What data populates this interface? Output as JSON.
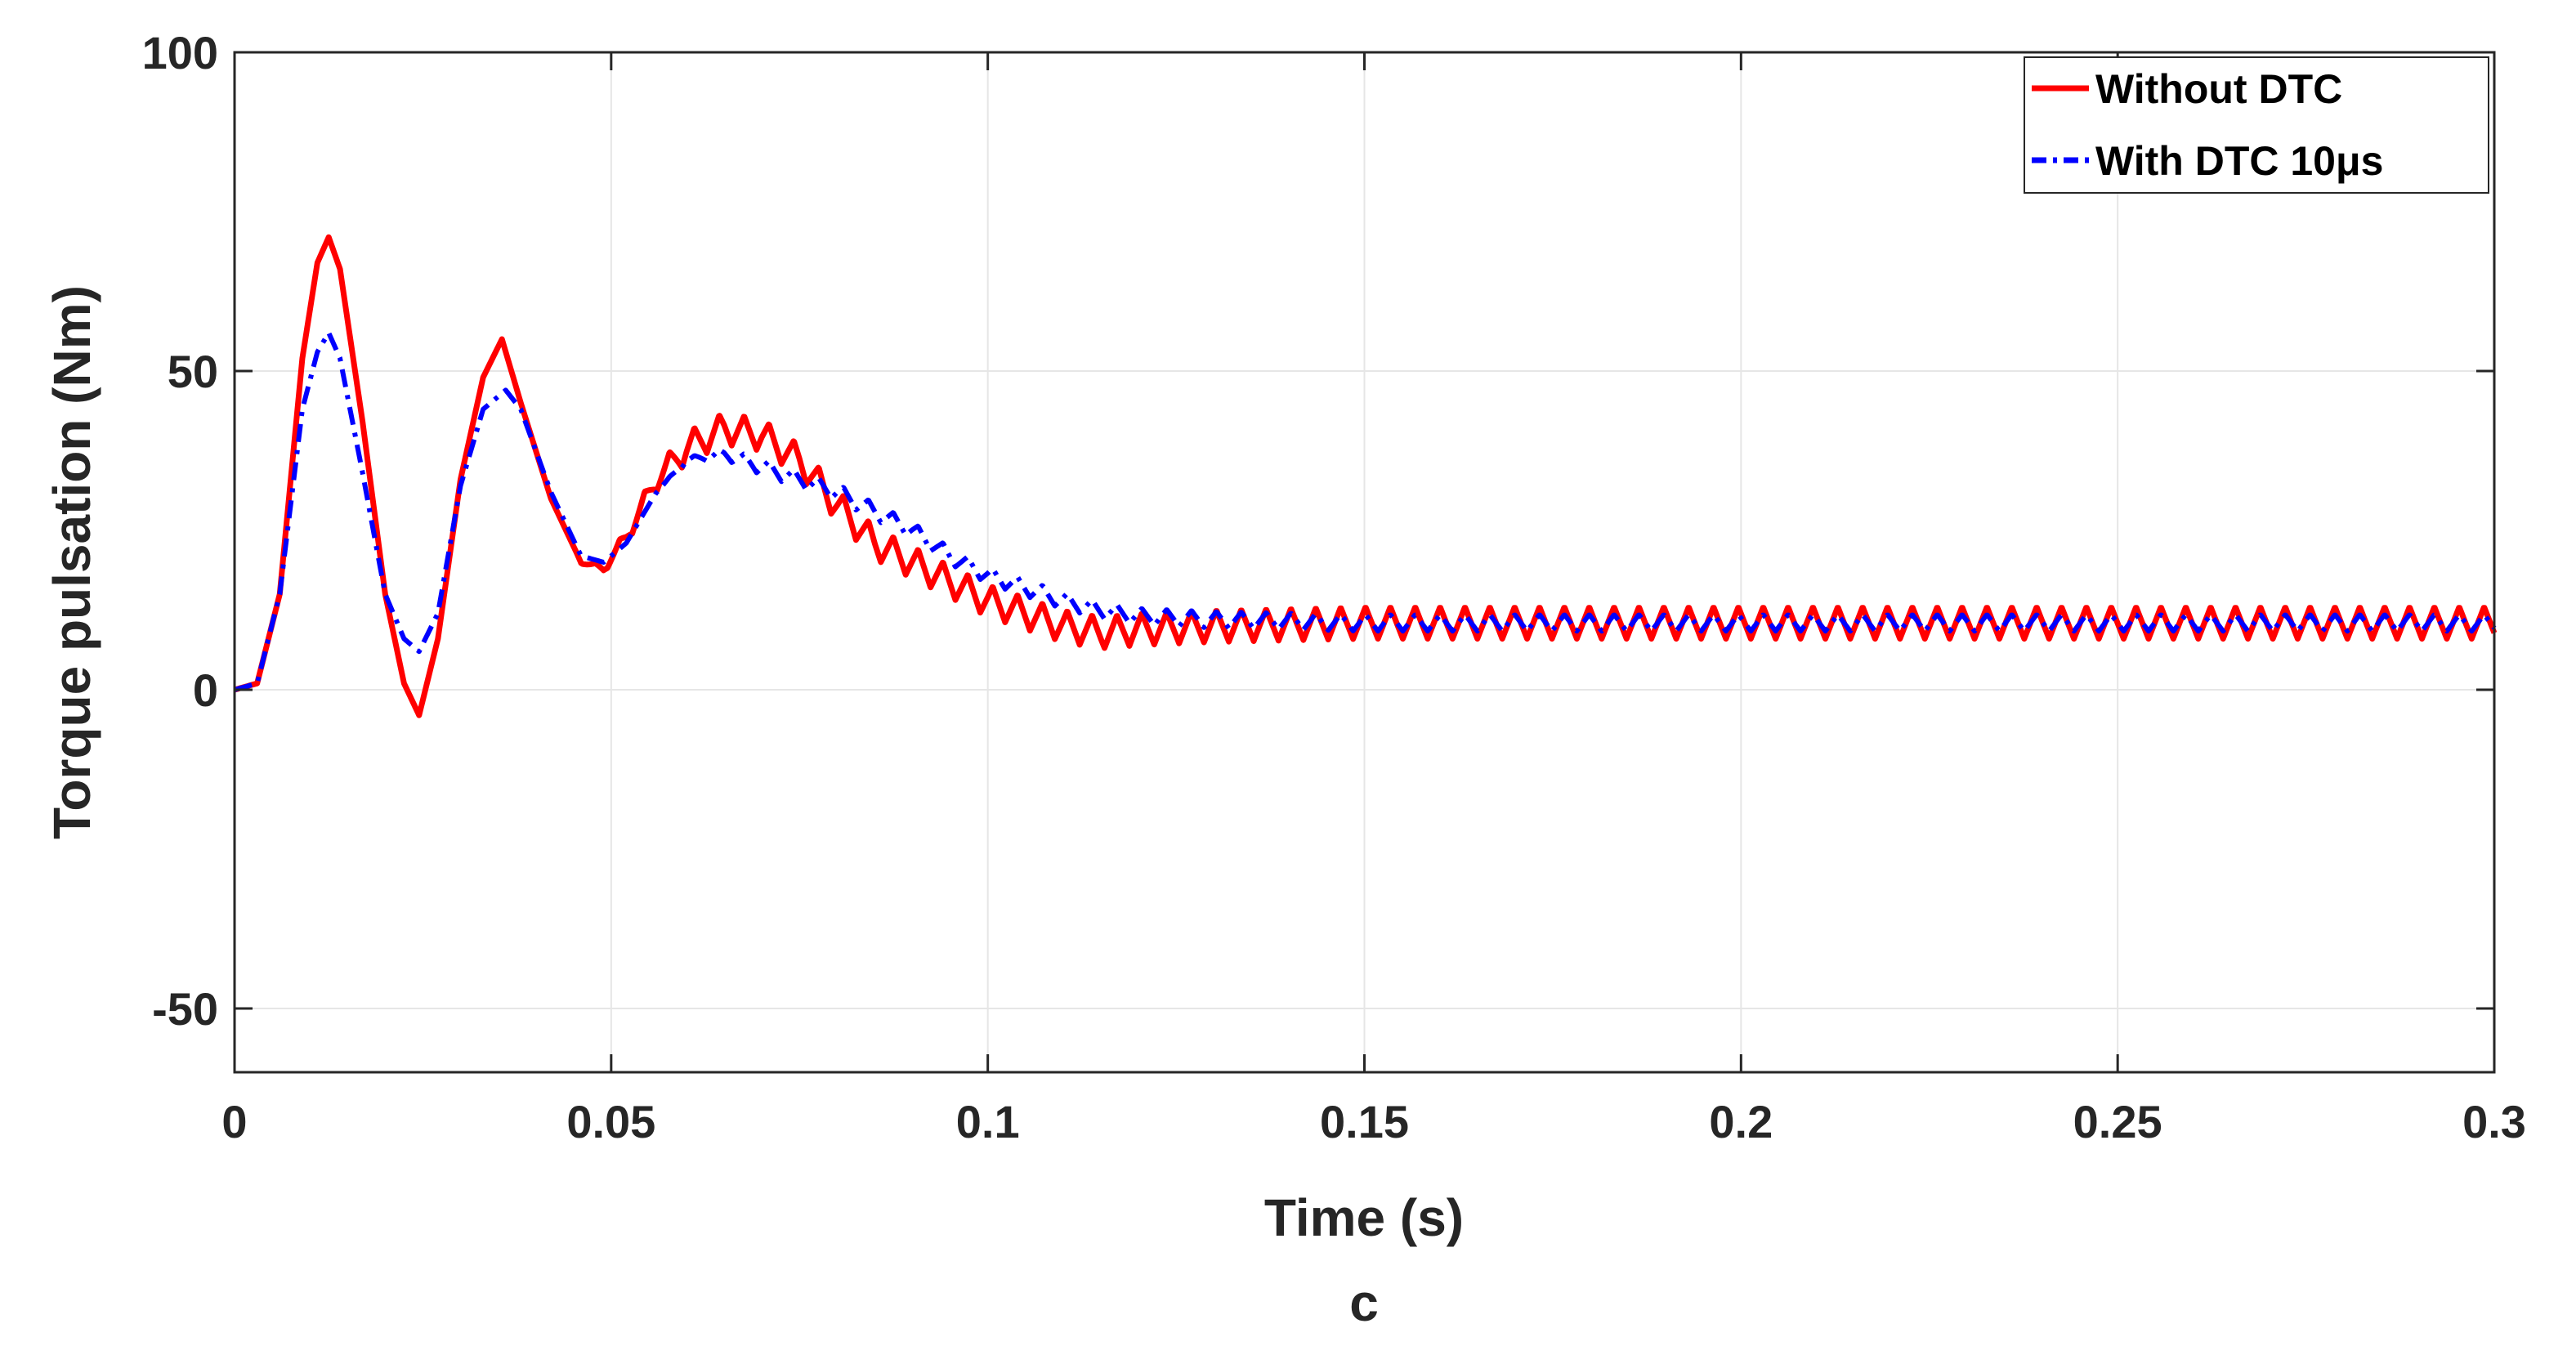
{
  "chart_data": {
    "type": "line",
    "title": "",
    "xlabel": "Time (s)",
    "ylabel": "Torque pulsation (Nm)",
    "caption": "c",
    "xlim": [
      0,
      0.3
    ],
    "ylim": [
      -60,
      100
    ],
    "xticks": [
      0,
      0.05,
      0.1,
      0.15,
      0.2,
      0.25,
      0.3
    ],
    "xtick_labels": [
      "0",
      "0.05",
      "0.1",
      "0.15",
      "0.2",
      "0.25",
      "0.3"
    ],
    "yticks": [
      -50,
      0,
      50,
      100
    ],
    "ytick_labels": [
      "-50",
      "0",
      "50",
      "100"
    ],
    "grid": true,
    "legend_position": "top-right",
    "series": [
      {
        "name": "Without DTC",
        "color": "#ff0000",
        "style": "solid",
        "ripple_amplitude": 2.5,
        "ripple_start": 0.045,
        "ripple_period": 0.0033,
        "envelope": {
          "x": [
            0,
            0.003,
            0.006,
            0.009,
            0.011,
            0.0125,
            0.014,
            0.017,
            0.02,
            0.0225,
            0.0245,
            0.027,
            0.03,
            0.033,
            0.0355,
            0.038,
            0.042,
            0.046,
            0.049,
            0.052,
            0.056,
            0.06,
            0.065,
            0.07,
            0.075,
            0.08,
            0.085,
            0.09,
            0.095,
            0.1,
            0.105,
            0.11,
            0.115,
            0.12,
            0.13,
            0.15,
            0.2,
            0.3
          ],
          "y": [
            0,
            1,
            15,
            52,
            67,
            71,
            66,
            42,
            15,
            1,
            -4,
            8,
            33,
            49,
            55,
            45,
            30,
            20,
            19,
            24,
            33,
            38,
            41,
            40,
            36,
            29,
            23,
            20,
            17,
            14,
            12,
            10,
            9,
            9.5,
            10,
            10.5,
            10.5,
            10.5
          ]
        }
      },
      {
        "name": "With DTC 10μs",
        "color": "#0000ff",
        "style": "dash-dot",
        "ripple_amplitude": 1.3,
        "ripple_start": 0.055,
        "ripple_period": 0.0033,
        "envelope": {
          "x": [
            0,
            0.003,
            0.006,
            0.009,
            0.011,
            0.0125,
            0.014,
            0.017,
            0.02,
            0.0225,
            0.0245,
            0.027,
            0.03,
            0.033,
            0.036,
            0.038,
            0.042,
            0.046,
            0.049,
            0.052,
            0.056,
            0.06,
            0.065,
            0.07,
            0.075,
            0.08,
            0.085,
            0.09,
            0.095,
            0.1,
            0.105,
            0.11,
            0.115,
            0.12,
            0.13,
            0.15,
            0.2,
            0.3
          ],
          "y": [
            0,
            1,
            15,
            44,
            53,
            56,
            52,
            34,
            15,
            8,
            6,
            12,
            32,
            44,
            47,
            44,
            31,
            21,
            20,
            23,
            31,
            36,
            37,
            35,
            33,
            31,
            28,
            25,
            21,
            18,
            16,
            14,
            12.5,
            11.5,
            11,
            10.5,
            10.5,
            10.5
          ]
        }
      }
    ]
  }
}
